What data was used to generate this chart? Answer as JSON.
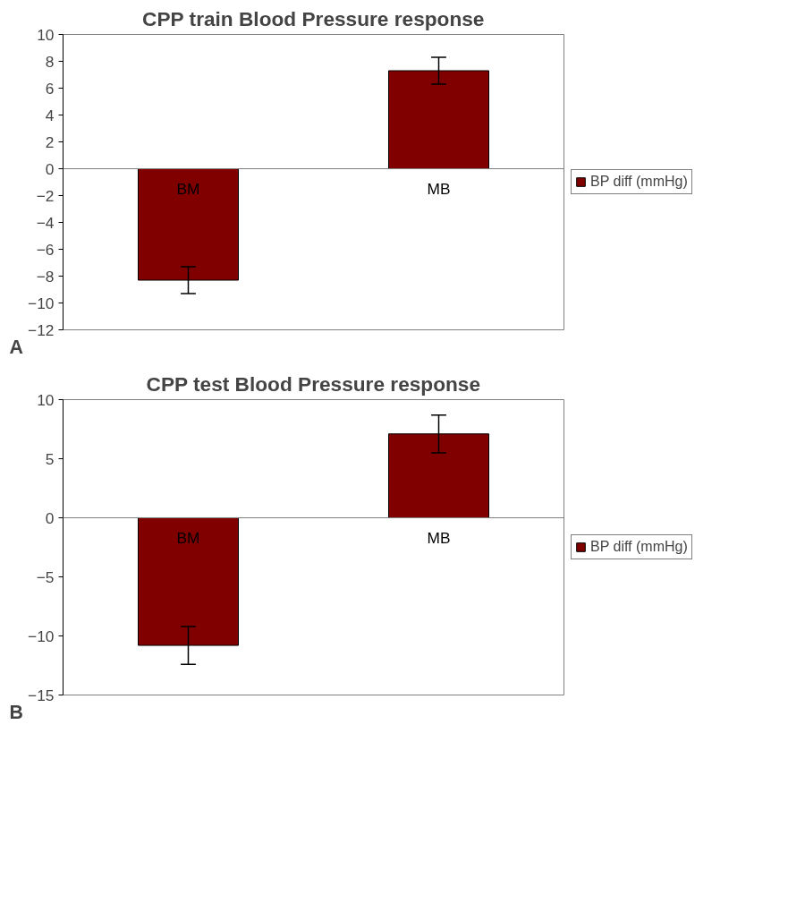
{
  "chart_data": [
    {
      "type": "bar",
      "title": "CPP train Blood Pressure response",
      "categories": [
        "BM",
        "MB"
      ],
      "series": [
        {
          "name": "BP diff (mmHg)",
          "color": "#800000",
          "values": [
            -8.3,
            7.3
          ],
          "errors": [
            1.0,
            1.0
          ]
        }
      ],
      "ylim": [
        -12,
        10
      ],
      "yticks": [
        -12,
        -10,
        -8,
        -6,
        -4,
        -2,
        0,
        2,
        4,
        6,
        8,
        10
      ],
      "grid": false,
      "legend": "right",
      "annotations": [
        "A"
      ]
    },
    {
      "type": "bar",
      "title": "CPP test Blood Pressure response",
      "categories": [
        "BM",
        "MB"
      ],
      "series": [
        {
          "name": "BP diff (mmHg)",
          "color": "#800000",
          "values": [
            -10.8,
            7.1
          ],
          "errors": [
            1.6,
            1.6
          ]
        }
      ],
      "ylim": [
        -15,
        10
      ],
      "yticks": [
        -15,
        -10,
        -5,
        0,
        5,
        10
      ],
      "grid": false,
      "legend": "right",
      "annotations": [
        "B"
      ]
    }
  ]
}
